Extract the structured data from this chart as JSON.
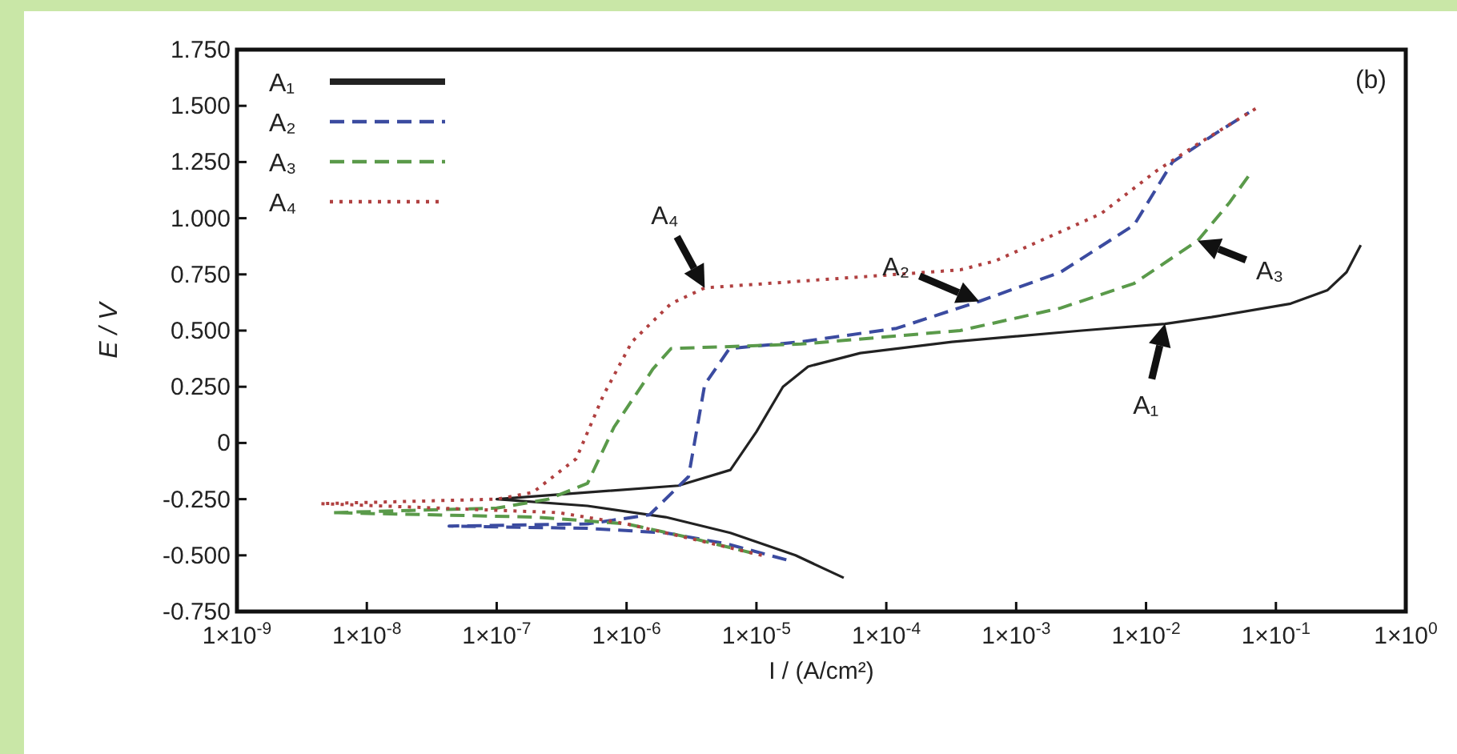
{
  "chart_data": {
    "type": "line",
    "xlabel": "I / (A/cm²)",
    "ylabel": "E / V",
    "log": "x",
    "legend": "top left",
    "grid": false,
    "xlim": [
      1e-09,
      1
    ],
    "ylim": [
      -0.75,
      1.75
    ],
    "xticks": [
      {
        "value": 1e-09,
        "label": "1×10$^{-9}$"
      },
      {
        "value": 1e-08,
        "label": "1×10$^{-8}$"
      },
      {
        "value": 1e-07,
        "label": "1×10$^{-7}$"
      },
      {
        "value": 1e-06,
        "label": "1×10$^{-6}$"
      },
      {
        "value": 1e-05,
        "label": "1×10$^{-5}$"
      },
      {
        "value": 0.0001,
        "label": "1×10$^{-4}$"
      },
      {
        "value": 0.001,
        "label": "1×10$^{-3}$"
      },
      {
        "value": 0.01,
        "label": "1×10$^{-2}$"
      },
      {
        "value": 0.1,
        "label": "1×10$^{-1}$"
      },
      {
        "value": 1,
        "label": "1×10$^{0}$"
      }
    ],
    "yticks": [
      {
        "value": -0.75,
        "label": "-0.750"
      },
      {
        "value": -0.5,
        "label": "-0.500"
      },
      {
        "value": -0.25,
        "label": "-0.250"
      },
      0,
      {
        "value": 0.25,
        "label": "0.250"
      },
      {
        "value": 0.5,
        "label": "0.500"
      },
      {
        "value": 0.75,
        "label": "0.750"
      },
      {
        "value": 1,
        "label": "1.000"
      },
      {
        "value": 1.25,
        "label": "1.250"
      },
      {
        "value": 1.5,
        "label": "1.500"
      },
      {
        "value": 1.75,
        "label": "1.750"
      }
    ],
    "series": [
      {
        "name": "A₁",
        "color": "#222222",
        "line_style": "solid",
        "x": [
          4.7e-05,
          2e-05,
          6.3e-06,
          2e-06,
          5e-07,
          1e-07,
          5e-07,
          2.5e-06,
          6.3e-06,
          1e-05,
          1.6e-05,
          2.5e-05,
          6.3e-05,
          0.00032,
          0.0032,
          0.014,
          0.032,
          0.13,
          0.25,
          0.35,
          0.45
        ],
        "values": [
          -0.6,
          -0.5,
          -0.4,
          -0.33,
          -0.28,
          -0.25,
          -0.22,
          -0.19,
          -0.12,
          0.05,
          0.25,
          0.34,
          0.4,
          0.45,
          0.5,
          0.53,
          0.56,
          0.62,
          0.68,
          0.76,
          0.88
        ]
      },
      {
        "name": "A₂",
        "color": "#3b4ba0",
        "line_style": "dashed",
        "x": [
          1.7e-05,
          6e-06,
          2e-06,
          5e-07,
          4.3e-08,
          5e-07,
          1.5e-06,
          3e-06,
          4e-06,
          6.2e-06,
          2.2e-05,
          0.00012,
          0.00052,
          0.0022,
          0.0081,
          0.016,
          0.035,
          0.062
        ],
        "values": [
          -0.52,
          -0.45,
          -0.4,
          -0.38,
          -0.37,
          -0.36,
          -0.32,
          -0.15,
          0.26,
          0.42,
          0.45,
          0.51,
          0.63,
          0.76,
          0.97,
          1.25,
          1.38,
          1.47
        ]
      },
      {
        "name": "A₃",
        "color": "#5a9a4a",
        "line_style": "dashed",
        "x": [
          9.3e-06,
          3e-06,
          1e-06,
          2e-07,
          5.4e-09,
          1e-07,
          2.5e-07,
          5e-07,
          8e-07,
          1.6e-06,
          2.2e-06,
          2.2e-05,
          0.00037,
          0.0022,
          0.0081,
          0.025,
          0.044,
          0.062
        ],
        "values": [
          -0.49,
          -0.42,
          -0.36,
          -0.33,
          -0.31,
          -0.29,
          -0.25,
          -0.18,
          0.07,
          0.33,
          0.42,
          0.44,
          0.5,
          0.6,
          0.71,
          0.9,
          1.07,
          1.19
        ]
      },
      {
        "name": "A₄",
        "color": "#b04040",
        "line_style": "dotted",
        "x": [
          1.1e-05,
          4e-06,
          1e-06,
          3e-07,
          4.4e-09,
          1e-07,
          1.9e-07,
          4.1e-07,
          6.6e-07,
          1.1e-06,
          2.2e-06,
          4e-06,
          2.2e-05,
          0.00037,
          0.00069,
          0.0045,
          0.012,
          0.025,
          0.071
        ],
        "values": [
          -0.5,
          -0.44,
          -0.36,
          -0.31,
          -0.27,
          -0.25,
          -0.22,
          -0.07,
          0.21,
          0.45,
          0.62,
          0.69,
          0.72,
          0.77,
          0.81,
          1.02,
          1.21,
          1.33,
          1.49
        ]
      }
    ],
    "annotations": [
      {
        "text": "A₄",
        "x": 4e-06,
        "y": 0.69
      },
      {
        "text": "A₂",
        "x": 0.00052,
        "y": 0.63
      },
      {
        "text": "A₃",
        "x": 0.025,
        "y": 0.9
      },
      {
        "text": "A₁",
        "x": 0.014,
        "y": 0.53
      },
      "(b)"
    ]
  }
}
